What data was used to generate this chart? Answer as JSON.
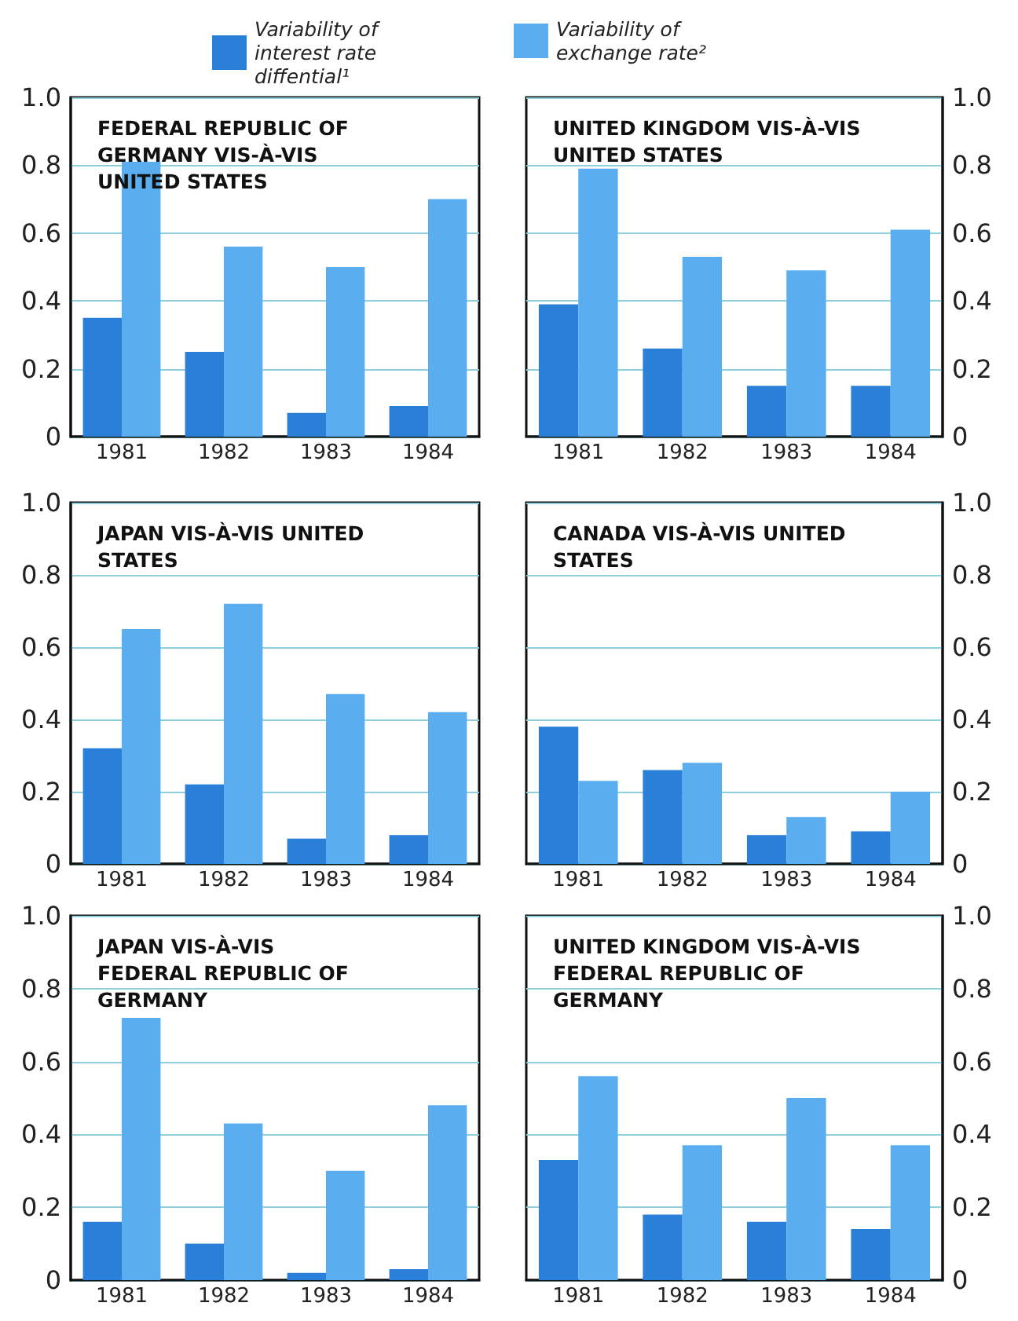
{
  "chart_data": [
    {
      "type": "bar",
      "title": "FEDERAL REPUBLIC OF GERMANY VIS-À-VIS UNITED STATES",
      "categories": [
        "1981",
        "1982",
        "1983",
        "1984"
      ],
      "legend": "top",
      "grid": "y",
      "ylim": [
        0,
        1
      ],
      "yticks": [
        {
          "value": 0,
          "label": "0"
        },
        {
          "value": 0.2,
          "label": "0.2"
        },
        {
          "value": 0.4,
          "label": "0.4"
        },
        {
          "value": 0.6,
          "label": "0.6"
        },
        {
          "value": 0.8,
          "label": "0.8"
        },
        {
          "value": 1,
          "label": "1.0"
        }
      ],
      "series": [
        {
          "name": "Variability of interest rate diffential¹",
          "color": "#2a7fd8",
          "values": [
            0.35,
            0.25,
            0.07,
            0.09
          ]
        },
        {
          "color": "#5aaef0",
          "values": [
            0.81,
            0.56,
            0.5,
            0.7
          ]
        }
      ]
    },
    {
      "type": "bar",
      "title": "UNITED KINGDOM VIS-À-VIS UNITED STATES",
      "categories": [
        "1981",
        "1982",
        "1983",
        "1984"
      ],
      "legend": "top",
      "grid": "y",
      "ylim": [
        0,
        1
      ],
      "yticks": [
        {
          "value": 0,
          "label": "0"
        },
        {
          "value": 0.2,
          "label": "0.2"
        },
        {
          "value": 0.4,
          "label": "0.4"
        },
        {
          "value": 0.6,
          "label": "0.6"
        },
        {
          "value": 0.8,
          "label": "0.8"
        },
        {
          "value": 1,
          "label": "1.0"
        }
      ],
      "series": [
        {
          "color": "#2a7fd8",
          "values": [
            0.39,
            0.26,
            0.15,
            0.15
          ]
        },
        {
          "name": "Variability of exchange rate²",
          "color": "#5aaef0",
          "values": [
            0.79,
            0.53,
            0.49,
            0.61
          ]
        }
      ]
    },
    {
      "type": "bar",
      "title": "JAPAN VIS-À-VIS UNITED STATES",
      "categories": [
        "1981",
        "1982",
        "1983",
        "1984"
      ],
      "grid": "y",
      "ylim": [
        0,
        1
      ],
      "yticks": [
        {
          "value": 0,
          "label": "0"
        },
        {
          "value": 0.2,
          "label": "0.2"
        },
        {
          "value": 0.4,
          "label": "0.4"
        },
        {
          "value": 0.6,
          "label": "0.6"
        },
        {
          "value": 0.8,
          "label": "0.8"
        },
        {
          "value": 1,
          "label": "1.0"
        }
      ],
      "series": [
        {
          "color": "#2a7fd8",
          "values": [
            0.32,
            0.22,
            0.07,
            0.08
          ]
        },
        {
          "color": "#5aaef0",
          "values": [
            0.65,
            0.72,
            0.47,
            0.42
          ]
        }
      ]
    },
    {
      "type": "bar",
      "title": "CANADA VIS-À-VIS UNITED STATES",
      "categories": [
        "1981",
        "1982",
        "1983",
        "1984"
      ],
      "grid": "y",
      "ylim": [
        0,
        1
      ],
      "yticks": [
        {
          "value": 0,
          "label": "0"
        },
        {
          "value": 0.2,
          "label": "0.2"
        },
        {
          "value": 0.4,
          "label": "0.4"
        },
        {
          "value": 0.6,
          "label": "0.6"
        },
        {
          "value": 0.8,
          "label": "0.8"
        },
        {
          "value": 1,
          "label": "1.0"
        }
      ],
      "series": [
        {
          "color": "#2a7fd8",
          "values": [
            0.38,
            0.26,
            0.08,
            0.09
          ]
        },
        {
          "color": "#5aaef0",
          "values": [
            0.23,
            0.28,
            0.13,
            0.2
          ]
        }
      ]
    },
    {
      "type": "bar",
      "title": "JAPAN VIS-À-VIS FEDERAL REPUBLIC OF GERMANY",
      "categories": [
        "1981",
        "1982",
        "1983",
        "1984"
      ],
      "grid": "y",
      "ylim": [
        0,
        1
      ],
      "yticks": [
        {
          "value": 0,
          "label": "0"
        },
        {
          "value": 0.2,
          "label": "0.2"
        },
        {
          "value": 0.4,
          "label": "0.4"
        },
        {
          "value": 0.6,
          "label": "0.6"
        },
        {
          "value": 0.8,
          "label": "0.8"
        },
        {
          "value": 1,
          "label": "1.0"
        }
      ],
      "series": [
        {
          "color": "#2a7fd8",
          "values": [
            0.16,
            0.1,
            0.02,
            0.03
          ]
        },
        {
          "color": "#5aaef0",
          "values": [
            0.72,
            0.43,
            0.3,
            0.48
          ]
        }
      ]
    },
    {
      "type": "bar",
      "title": "UNITED KINGDOM VIS-À-VIS FEDERAL REPUBLIC OF GERMANY",
      "categories": [
        "1981",
        "1982",
        "1983",
        "1984"
      ],
      "grid": "y",
      "ylim": [
        0,
        1
      ],
      "yticks": [
        {
          "value": 0,
          "label": "0"
        },
        {
          "value": 0.2,
          "label": "0.2"
        },
        {
          "value": 0.4,
          "label": "0.4"
        },
        {
          "value": 0.6,
          "label": "0.6"
        },
        {
          "value": 0.8,
          "label": "0.8"
        },
        {
          "value": 1,
          "label": "1.0"
        }
      ],
      "series": [
        {
          "color": "#2a7fd8",
          "values": [
            0.33,
            0.18,
            0.16,
            0.14
          ]
        },
        {
          "color": "#5aaef0",
          "values": [
            0.56,
            0.37,
            0.5,
            0.37
          ]
        }
      ]
    }
  ]
}
